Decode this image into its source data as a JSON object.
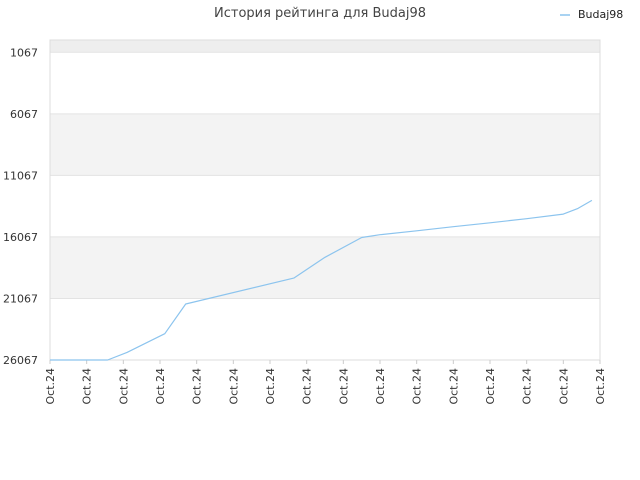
{
  "chart_data": {
    "type": "line",
    "title": "История рейтинга для Budaj98",
    "xlabel": "",
    "ylabel": "",
    "y_inverted": true,
    "ylim": [
      26067,
      67
    ],
    "y_ticks": [
      1067,
      6067,
      11067,
      16067,
      21067,
      26067
    ],
    "x_tick_labels": [
      "Oct.24",
      "Oct.24",
      "Oct.24",
      "Oct.24",
      "Oct.24",
      "Oct.24",
      "Oct.24",
      "Oct.24",
      "Oct.24",
      "Oct.24",
      "Oct.24",
      "Oct.24",
      "Oct.24",
      "Oct.24",
      "Oct.24",
      "Oct.24"
    ],
    "legend": {
      "position": "top-right"
    },
    "grid": true,
    "series": [
      {
        "name": "Budaj98",
        "color": "#8cc4ee",
        "points": [
          {
            "x": 0,
            "y": 26067
          },
          {
            "x": 1.57,
            "y": 26067
          },
          {
            "x": 2.1,
            "y": 25450
          },
          {
            "x": 3.13,
            "y": 23930
          },
          {
            "x": 3.7,
            "y": 21520
          },
          {
            "x": 6.65,
            "y": 19410
          },
          {
            "x": 7.5,
            "y": 17720
          },
          {
            "x": 8.5,
            "y": 16110
          },
          {
            "x": 9.0,
            "y": 15890
          },
          {
            "x": 10.0,
            "y": 15570
          },
          {
            "x": 11.0,
            "y": 15240
          },
          {
            "x": 12.0,
            "y": 14920
          },
          {
            "x": 13.0,
            "y": 14590
          },
          {
            "x": 14.0,
            "y": 14210
          },
          {
            "x": 14.4,
            "y": 13750
          },
          {
            "x": 14.78,
            "y": 13100
          }
        ]
      }
    ]
  }
}
